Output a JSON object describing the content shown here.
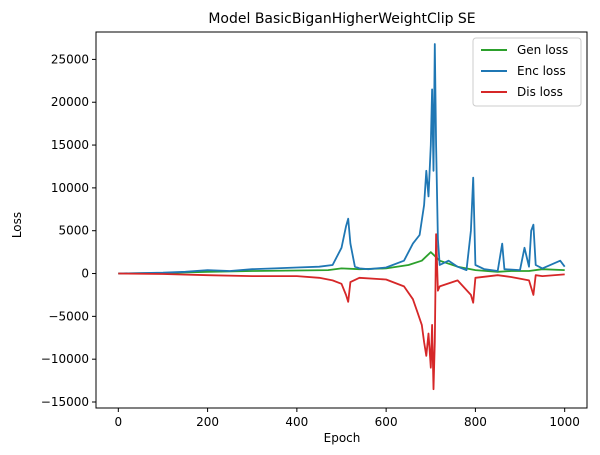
{
  "chart_data": {
    "type": "line",
    "title": "Model BasicBiganHigherWeightClip SE",
    "xlabel": "Epoch",
    "ylabel": "Loss",
    "xlim": [
      -50,
      1050
    ],
    "ylim": [
      -15700,
      28200
    ],
    "xticks": [
      0,
      200,
      400,
      600,
      800,
      1000
    ],
    "yticks": [
      -15000,
      -10000,
      -5000,
      0,
      5000,
      10000,
      15000,
      20000,
      25000
    ],
    "grid": false,
    "legend_position": "top-right",
    "series": [
      {
        "name": "Gen loss",
        "color": "#2ca02c",
        "points": [
          [
            0,
            0
          ],
          [
            100,
            60
          ],
          [
            200,
            200
          ],
          [
            300,
            300
          ],
          [
            400,
            350
          ],
          [
            470,
            400
          ],
          [
            500,
            600
          ],
          [
            540,
            500
          ],
          [
            600,
            600
          ],
          [
            650,
            1000
          ],
          [
            680,
            1500
          ],
          [
            700,
            2500
          ],
          [
            720,
            1500
          ],
          [
            760,
            800
          ],
          [
            800,
            400
          ],
          [
            850,
            200
          ],
          [
            880,
            300
          ],
          [
            920,
            300
          ],
          [
            950,
            500
          ],
          [
            1000,
            400
          ]
        ]
      },
      {
        "name": "Enc loss",
        "color": "#1f77b4",
        "points": [
          [
            0,
            0
          ],
          [
            100,
            100
          ],
          [
            150,
            200
          ],
          [
            200,
            400
          ],
          [
            250,
            300
          ],
          [
            300,
            500
          ],
          [
            350,
            600
          ],
          [
            400,
            700
          ],
          [
            450,
            800
          ],
          [
            480,
            1000
          ],
          [
            500,
            3000
          ],
          [
            510,
            5500
          ],
          [
            515,
            6400
          ],
          [
            520,
            3500
          ],
          [
            530,
            800
          ],
          [
            540,
            600
          ],
          [
            560,
            500
          ],
          [
            600,
            700
          ],
          [
            640,
            1500
          ],
          [
            660,
            3500
          ],
          [
            675,
            4500
          ],
          [
            685,
            8000
          ],
          [
            690,
            12000
          ],
          [
            695,
            9000
          ],
          [
            700,
            15000
          ],
          [
            703,
            21500
          ],
          [
            706,
            12000
          ],
          [
            709,
            26800
          ],
          [
            712,
            15000
          ],
          [
            716,
            4000
          ],
          [
            720,
            1000
          ],
          [
            740,
            1500
          ],
          [
            760,
            800
          ],
          [
            780,
            400
          ],
          [
            790,
            5000
          ],
          [
            795,
            11200
          ],
          [
            800,
            1000
          ],
          [
            820,
            500
          ],
          [
            850,
            300
          ],
          [
            860,
            3500
          ],
          [
            865,
            500
          ],
          [
            900,
            400
          ],
          [
            910,
            3000
          ],
          [
            920,
            800
          ],
          [
            925,
            5000
          ],
          [
            930,
            5700
          ],
          [
            935,
            1000
          ],
          [
            950,
            600
          ],
          [
            990,
            1500
          ],
          [
            1000,
            800
          ]
        ]
      },
      {
        "name": "Dis loss",
        "color": "#d62728",
        "points": [
          [
            0,
            0
          ],
          [
            100,
            -50
          ],
          [
            200,
            -200
          ],
          [
            300,
            -300
          ],
          [
            400,
            -300
          ],
          [
            450,
            -500
          ],
          [
            480,
            -800
          ],
          [
            500,
            -1200
          ],
          [
            510,
            -2500
          ],
          [
            515,
            -3300
          ],
          [
            520,
            -1000
          ],
          [
            540,
            -500
          ],
          [
            600,
            -700
          ],
          [
            640,
            -1500
          ],
          [
            660,
            -3000
          ],
          [
            670,
            -4500
          ],
          [
            680,
            -6000
          ],
          [
            685,
            -8000
          ],
          [
            690,
            -9600
          ],
          [
            695,
            -7000
          ],
          [
            700,
            -11000
          ],
          [
            703,
            -6000
          ],
          [
            706,
            -13500
          ],
          [
            709,
            -8000
          ],
          [
            712,
            4600
          ],
          [
            716,
            -2000
          ],
          [
            720,
            -1500
          ],
          [
            760,
            -800
          ],
          [
            790,
            -2500
          ],
          [
            795,
            -3400
          ],
          [
            800,
            -500
          ],
          [
            850,
            -200
          ],
          [
            880,
            -400
          ],
          [
            920,
            -800
          ],
          [
            930,
            -2500
          ],
          [
            935,
            -200
          ],
          [
            950,
            -300
          ],
          [
            1000,
            -100
          ]
        ]
      }
    ]
  }
}
